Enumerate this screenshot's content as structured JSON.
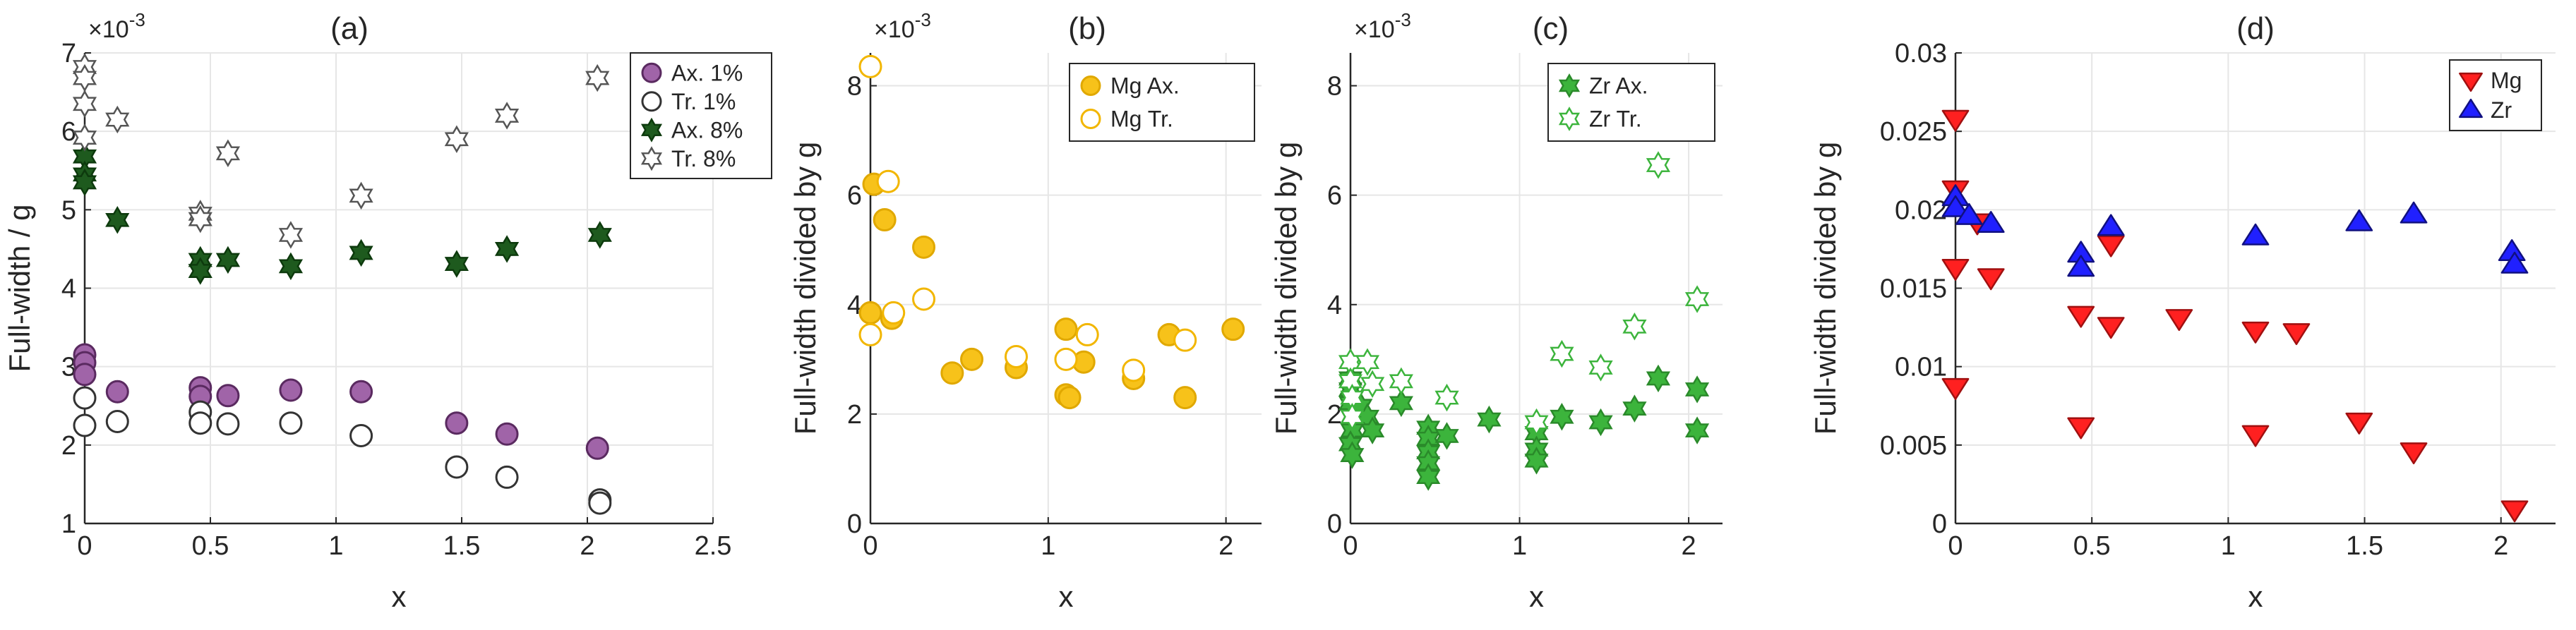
{
  "chart_data": [
    {
      "panel": "a",
      "type": "scatter",
      "title": "(a)",
      "xlabel": "x",
      "ylabel": "Full-width / g",
      "exponent_label": "×10",
      "exponent_power": "-3",
      "xlim": [
        0,
        2.5
      ],
      "ylim": [
        1,
        7
      ],
      "xticks": [
        0,
        0.5,
        1,
        1.5,
        2,
        2.5
      ],
      "xtick_labels": [
        "0",
        "0.5",
        "1",
        "1.5",
        "2",
        "2.5"
      ],
      "yticks": [
        1,
        2,
        3,
        4,
        5,
        6,
        7
      ],
      "ytick_labels": [
        "1",
        "2",
        "3",
        "4",
        "5",
        "6",
        "7"
      ],
      "grid": true,
      "legend_position": "top-right",
      "series": [
        {
          "name": "Ax. 1%",
          "marker": "circle",
          "fill": "#a064a8",
          "stroke": "#5a2a60",
          "points": [
            [
              0,
              3.15
            ],
            [
              0,
              3.05
            ],
            [
              0,
              2.9
            ],
            [
              0.13,
              2.68
            ],
            [
              0.46,
              2.73
            ],
            [
              0.46,
              2.62
            ],
            [
              0.57,
              2.63
            ],
            [
              0.82,
              2.7
            ],
            [
              1.1,
              2.68
            ],
            [
              1.48,
              2.28
            ],
            [
              1.68,
              2.14
            ],
            [
              2.04,
              1.96
            ]
          ]
        },
        {
          "name": "Tr. 1%",
          "marker": "circle",
          "fill": "#ffffff",
          "stroke": "#333333",
          "points": [
            [
              0,
              2.6
            ],
            [
              0,
              2.25
            ],
            [
              0.13,
              2.3
            ],
            [
              0.46,
              2.42
            ],
            [
              0.46,
              2.28
            ],
            [
              0.57,
              2.27
            ],
            [
              0.82,
              2.28
            ],
            [
              1.1,
              2.12
            ],
            [
              1.48,
              1.72
            ],
            [
              1.68,
              1.59
            ],
            [
              2.05,
              1.3
            ],
            [
              2.05,
              1.26
            ]
          ]
        },
        {
          "name": "Ax. 8%",
          "marker": "hexagram",
          "fill": "#1e5a1e",
          "stroke": "#0d3a0d",
          "points": [
            [
              0,
              5.68
            ],
            [
              0,
              5.45
            ],
            [
              0,
              5.35
            ],
            [
              0.13,
              4.87
            ],
            [
              0.46,
              4.36
            ],
            [
              0.46,
              4.22
            ],
            [
              0.57,
              4.36
            ],
            [
              0.82,
              4.28
            ],
            [
              1.1,
              4.45
            ],
            [
              1.48,
              4.31
            ],
            [
              1.68,
              4.5
            ],
            [
              2.05,
              4.68
            ]
          ]
        },
        {
          "name": "Tr. 8%",
          "marker": "hexagram",
          "fill": "#ffffff",
          "stroke": "#555555",
          "points": [
            [
              0,
              6.82
            ],
            [
              0,
              6.68
            ],
            [
              0,
              6.35
            ],
            [
              0,
              5.92
            ],
            [
              0.13,
              6.15
            ],
            [
              0.46,
              4.95
            ],
            [
              0.46,
              4.88
            ],
            [
              0.57,
              5.72
            ],
            [
              0.82,
              4.68
            ],
            [
              1.1,
              5.18
            ],
            [
              1.48,
              5.9
            ],
            [
              1.68,
              6.2
            ],
            [
              2.04,
              6.68
            ]
          ]
        }
      ]
    },
    {
      "panel": "b",
      "type": "scatter",
      "title": "(b)",
      "xlabel": "x",
      "ylabel": "Full-width divided by g",
      "exponent_label": "×10",
      "exponent_power": "-3",
      "xlim": [
        0,
        2.2
      ],
      "ylim": [
        0,
        8.6
      ],
      "xticks": [
        0,
        1,
        2
      ],
      "xtick_labels": [
        "0",
        "1",
        "2"
      ],
      "yticks": [
        0,
        2,
        4,
        6,
        8
      ],
      "ytick_labels": [
        "0",
        "2",
        "4",
        "6",
        "8"
      ],
      "grid": true,
      "legend_position": "top-right",
      "series": [
        {
          "name": "Mg Ax.",
          "marker": "circle",
          "fill": "#f7c21a",
          "stroke": "#e0a800",
          "points": [
            [
              0,
              3.85
            ],
            [
              0.02,
              6.2
            ],
            [
              0.08,
              5.55
            ],
            [
              0.12,
              3.75
            ],
            [
              0.3,
              5.05
            ],
            [
              0.46,
              2.75
            ],
            [
              0.57,
              3.0
            ],
            [
              0.82,
              2.85
            ],
            [
              1.1,
              3.55
            ],
            [
              1.1,
              2.35
            ],
            [
              1.12,
              2.3
            ],
            [
              1.2,
              2.95
            ],
            [
              1.48,
              2.65
            ],
            [
              1.68,
              3.45
            ],
            [
              1.77,
              2.3
            ],
            [
              2.04,
              3.55
            ]
          ]
        },
        {
          "name": "Mg Tr.",
          "marker": "circle",
          "fill": "#ffffff",
          "stroke": "#f2b600",
          "points": [
            [
              0,
              8.35
            ],
            [
              0,
              3.45
            ],
            [
              0.1,
              6.25
            ],
            [
              0.13,
              3.85
            ],
            [
              0.3,
              4.1
            ],
            [
              0.82,
              3.05
            ],
            [
              1.1,
              3.0
            ],
            [
              1.22,
              3.45
            ],
            [
              1.48,
              2.8
            ],
            [
              1.77,
              3.35
            ]
          ]
        }
      ]
    },
    {
      "panel": "c",
      "type": "scatter",
      "title": "(c)",
      "xlabel": "x",
      "ylabel": "Full-width divided by g",
      "exponent_label": "×10",
      "exponent_power": "-3",
      "xlim": [
        0,
        2.2
      ],
      "ylim": [
        0,
        8.6
      ],
      "xticks": [
        0,
        1,
        2
      ],
      "xtick_labels": [
        "0",
        "1",
        "2"
      ],
      "yticks": [
        0,
        2,
        4,
        6,
        8
      ],
      "ytick_labels": [
        "0",
        "2",
        "4",
        "6",
        "8"
      ],
      "grid": true,
      "legend_position": "top-right",
      "series": [
        {
          "name": "Zr Ax.",
          "marker": "hexagram",
          "fill": "#3cb43c",
          "stroke": "#2a8a2a",
          "points": [
            [
              0,
              2.65
            ],
            [
              0,
              2.45
            ],
            [
              0,
              2.2
            ],
            [
              0.01,
              1.95
            ],
            [
              0.01,
              1.7
            ],
            [
              0,
              1.45
            ],
            [
              0.01,
              1.25
            ],
            [
              0.06,
              2.15
            ],
            [
              0.1,
              1.95
            ],
            [
              0.13,
              1.7
            ],
            [
              0.3,
              2.2
            ],
            [
              0.46,
              1.75
            ],
            [
              0.46,
              1.55
            ],
            [
              0.46,
              1.3
            ],
            [
              0.46,
              1.1
            ],
            [
              0.46,
              0.85
            ],
            [
              0.57,
              1.6
            ],
            [
              0.82,
              1.9
            ],
            [
              1.1,
              1.65
            ],
            [
              1.1,
              1.35
            ],
            [
              1.1,
              1.15
            ],
            [
              1.25,
              1.95
            ],
            [
              1.48,
              1.85
            ],
            [
              1.68,
              2.1
            ],
            [
              1.82,
              2.65
            ],
            [
              2.05,
              2.45
            ],
            [
              2.05,
              1.7
            ]
          ]
        },
        {
          "name": "Zr Tr.",
          "marker": "hexagram",
          "fill": "#ffffff",
          "stroke": "#3cb43c",
          "points": [
            [
              0,
              2.95
            ],
            [
              0,
              2.6
            ],
            [
              0.01,
              2.3
            ],
            [
              0.01,
              1.95
            ],
            [
              0.1,
              2.95
            ],
            [
              0.13,
              2.55
            ],
            [
              0.3,
              2.6
            ],
            [
              0.57,
              2.3
            ],
            [
              1.1,
              1.85
            ],
            [
              1.25,
              3.1
            ],
            [
              1.48,
              2.85
            ],
            [
              1.68,
              3.6
            ],
            [
              1.82,
              6.55
            ],
            [
              2.05,
              4.1
            ]
          ]
        }
      ]
    },
    {
      "panel": "d",
      "type": "scatter",
      "title": "(d)",
      "xlabel": "x",
      "ylabel": "Full-width divided by g",
      "xlim": [
        0,
        2.2
      ],
      "ylim": [
        0,
        0.03
      ],
      "xticks": [
        0,
        0.5,
        1,
        1.5,
        2
      ],
      "xtick_labels": [
        "0",
        "0.5",
        "1",
        "1.5",
        "2"
      ],
      "yticks": [
        0,
        0.005,
        0.01,
        0.015,
        0.02,
        0.025,
        0.03
      ],
      "ytick_labels": [
        "0",
        "0.005",
        "0.01",
        "0.015",
        "0.02",
        "0.025",
        "0.03"
      ],
      "grid": true,
      "legend_position": "top-right",
      "series": [
        {
          "name": "Mg",
          "marker": "triangle-down",
          "fill": "#ff2020",
          "stroke": "#a01010",
          "points": [
            [
              0,
              0.0258
            ],
            [
              0,
              0.0213
            ],
            [
              0,
              0.0163
            ],
            [
              0,
              0.0087
            ],
            [
              0.08,
              0.0192
            ],
            [
              0.13,
              0.0157
            ],
            [
              0.46,
              0.0133
            ],
            [
              0.46,
              0.0062
            ],
            [
              0.57,
              0.0178
            ],
            [
              0.57,
              0.0126
            ],
            [
              0.82,
              0.0131
            ],
            [
              1.1,
              0.0123
            ],
            [
              1.1,
              0.0057
            ],
            [
              1.25,
              0.0122
            ],
            [
              1.48,
              0.0065
            ],
            [
              1.68,
              0.0046
            ],
            [
              2.05,
              0.0009
            ]
          ]
        },
        {
          "name": "Zr",
          "marker": "triangle-up",
          "fill": "#2020ff",
          "stroke": "#101080",
          "points": [
            [
              0,
              0.0208
            ],
            [
              0,
              0.0201
            ],
            [
              0.05,
              0.0196
            ],
            [
              0.13,
              0.0191
            ],
            [
              0.46,
              0.0172
            ],
            [
              0.46,
              0.0163
            ],
            [
              0.57,
              0.0189
            ],
            [
              1.1,
              0.0183
            ],
            [
              1.48,
              0.0192
            ],
            [
              1.68,
              0.0197
            ],
            [
              2.04,
              0.0173
            ],
            [
              2.05,
              0.0165
            ]
          ]
        }
      ]
    }
  ]
}
